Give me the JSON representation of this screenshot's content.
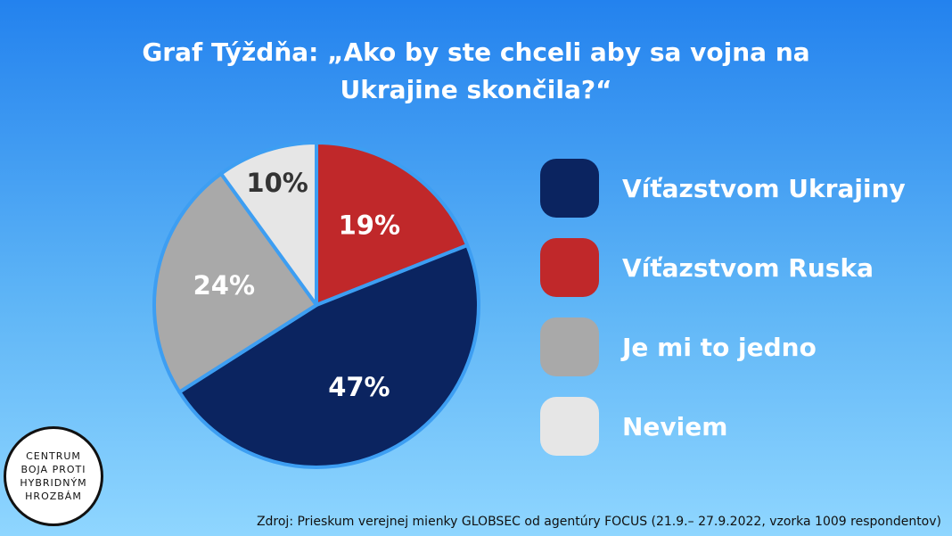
{
  "chart_data": {
    "type": "pie",
    "title": "Graf Týždňa: „Ako by ste chceli aby sa vojna na Ukrajine skončila?“",
    "categories": [
      "Víťazstvom Ukrajiny",
      "Víťazstvom Ruska",
      "Je mi to jedno",
      "Neviem"
    ],
    "values": [
      47,
      19,
      24,
      10
    ],
    "value_labels": [
      "47%",
      "19%",
      "24%",
      "10%"
    ],
    "colors": [
      "#0b2460",
      "#c0282a",
      "#a9a9a9",
      "#e6e6e6"
    ],
    "legend": "right",
    "source": "Zdroj: Prieskum verejnej mienky GLOBSEC od agentúry FOCUS (21.9.– 27.9.2022, vzorka 1009 respondentov)"
  },
  "logo": {
    "lines": [
      "CENTRUM",
      "BOJA PROTI",
      "HYBRIDNÝM",
      "HROZBÁM"
    ]
  }
}
